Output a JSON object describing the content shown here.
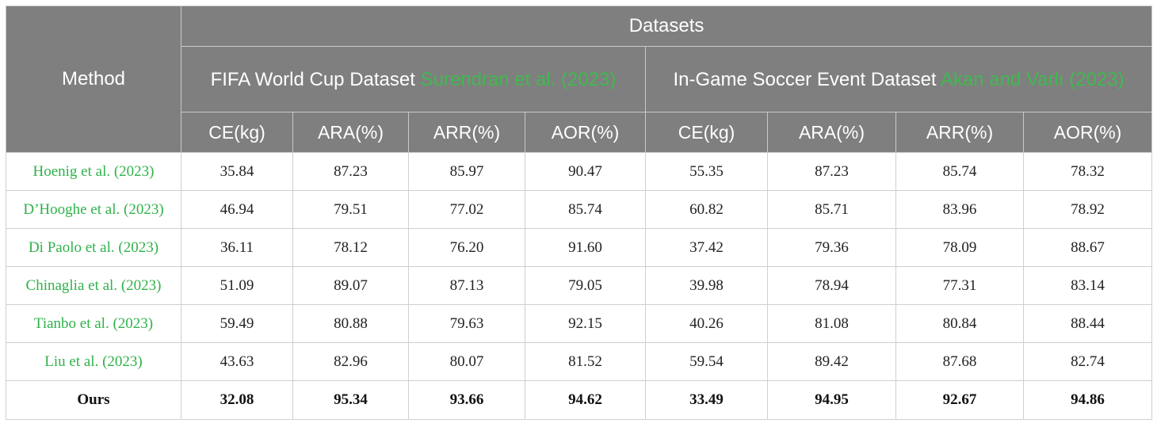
{
  "header": {
    "method": "Method",
    "datasets": "Datasets",
    "fifa_name": "FIFA World Cup Dataset",
    "fifa_ref": "Surendran et al. (2023)",
    "ingame_name": "In-Game Soccer Event Dataset",
    "ingame_ref": "Akan and Varlı (2023)",
    "metrics": [
      "CE(kg)",
      "ARA(%)",
      "ARR(%)",
      "AOR(%)",
      "CE(kg)",
      "ARA(%)",
      "ARR(%)",
      "AOR(%)"
    ]
  },
  "rows": [
    {
      "method": "Hoenig et al. (2023)",
      "values": [
        "35.84",
        "87.23",
        "85.97",
        "90.47",
        "55.35",
        "87.23",
        "85.74",
        "78.32"
      ]
    },
    {
      "method": "D’Hooghe et al. (2023)",
      "values": [
        "46.94",
        "79.51",
        "77.02",
        "85.74",
        "60.82",
        "85.71",
        "83.96",
        "78.92"
      ]
    },
    {
      "method": "Di Paolo et al. (2023)",
      "values": [
        "36.11",
        "78.12",
        "76.20",
        "91.60",
        "37.42",
        "79.36",
        "78.09",
        "88.67"
      ]
    },
    {
      "method": "Chinaglia et al. (2023)",
      "values": [
        "51.09",
        "89.07",
        "87.13",
        "79.05",
        "39.98",
        "78.94",
        "77.31",
        "83.14"
      ]
    },
    {
      "method": "Tianbo et al. (2023)",
      "values": [
        "59.49",
        "80.88",
        "79.63",
        "92.15",
        "40.26",
        "81.08",
        "80.84",
        "88.44"
      ]
    },
    {
      "method": "Liu et al. (2023)",
      "values": [
        "43.63",
        "82.96",
        "80.07",
        "81.52",
        "59.54",
        "89.42",
        "87.68",
        "82.74"
      ]
    },
    {
      "method": "Ours",
      "values": [
        "32.08",
        "95.34",
        "93.66",
        "94.62",
        "33.49",
        "94.95",
        "92.67",
        "94.86"
      ]
    }
  ],
  "colors": {
    "header_bg": "#7f7f7f",
    "header_text": "#ffffff",
    "citation_green": "#3fb94f",
    "border": "#cfcfcf"
  }
}
